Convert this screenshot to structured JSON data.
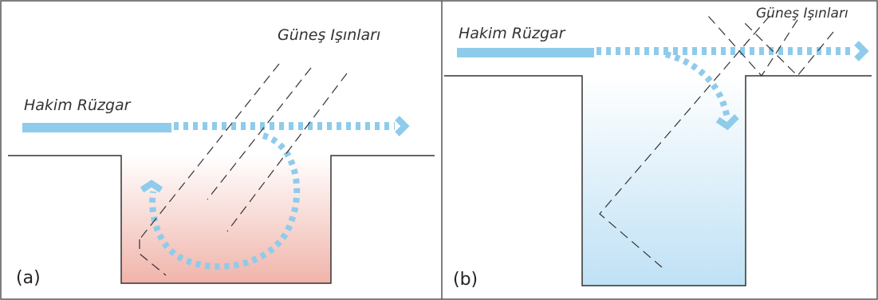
{
  "panels": [
    {
      "label": "(a)",
      "sun": "Güneş Işınları",
      "wind": "Hakim Rüzgar"
    },
    {
      "label": "(b)",
      "sun": "Güneş Işınları",
      "wind": "Hakim Rüzgar"
    }
  ]
}
